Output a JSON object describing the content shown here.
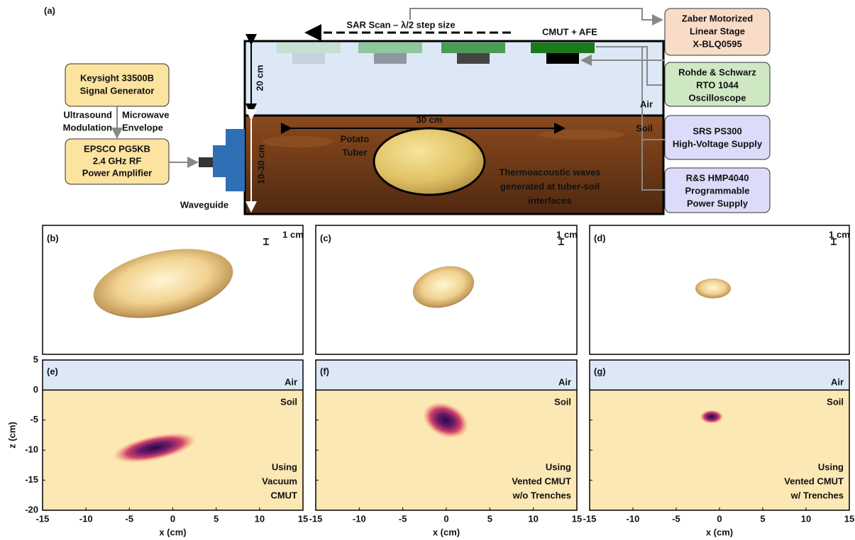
{
  "panel_a": {
    "label": "(a)",
    "scan": "SAR Scan – λ/2 step size",
    "cmut": "CMUT + AFE",
    "depth_air": "20 cm",
    "width": "30 cm",
    "depth_soil": "10-30 cm",
    "air": "Air",
    "soil": "Soil",
    "tuber": [
      "Potato",
      "Tuber"
    ],
    "waves": [
      "Thermoacoustic waves",
      "generated at tuber-soil",
      "interfaces"
    ],
    "waveguide": "Waveguide",
    "left_boxes": [
      [
        "Keysight 33500B",
        "Signal Generator"
      ],
      [
        "EPSCO PG5KB",
        "2.4 GHz RF",
        "Power Amplifier"
      ]
    ],
    "modulation_left": [
      "Ultrasound",
      "Modulation"
    ],
    "modulation_right": [
      "Microwave",
      "Envelope"
    ],
    "right_boxes": [
      [
        "Zaber Motorized",
        "Linear Stage",
        "X-BLQ0595"
      ],
      [
        "Rohde & Schwarz",
        "RTO 1044",
        "Oscilloscope"
      ],
      [
        "SRS PS300",
        "High-Voltage Supply"
      ],
      [
        "R&S HMP4040",
        "Programmable",
        "Power Supply"
      ]
    ]
  },
  "photo_panels": [
    {
      "label": "(b)",
      "scale": "1 cm"
    },
    {
      "label": "(c)",
      "scale": "1 cm"
    },
    {
      "label": "(d)",
      "scale": "1 cm"
    }
  ],
  "map_panels": [
    {
      "label": "(e)",
      "air": "Air",
      "soil": "Soil",
      "method": [
        "Using",
        "Vacuum",
        "CMUT"
      ]
    },
    {
      "label": "(f)",
      "air": "Air",
      "soil": "Soil",
      "method": [
        "Using",
        "Vented CMUT",
        "w/o Trenches"
      ]
    },
    {
      "label": "(g)",
      "air": "Air",
      "soil": "Soil",
      "method": [
        "Using",
        "Vented CMUT",
        "w/ Trenches"
      ]
    }
  ],
  "axes": {
    "xlabel": "x (cm)",
    "ylabel": "z (cm)",
    "xlim": [
      -15,
      15
    ],
    "ylim": [
      -20,
      5
    ],
    "xticks": [
      -15,
      -10,
      -5,
      0,
      5,
      10,
      15
    ],
    "yticks": [
      5,
      0,
      -5,
      -10,
      -15,
      -20
    ]
  }
}
